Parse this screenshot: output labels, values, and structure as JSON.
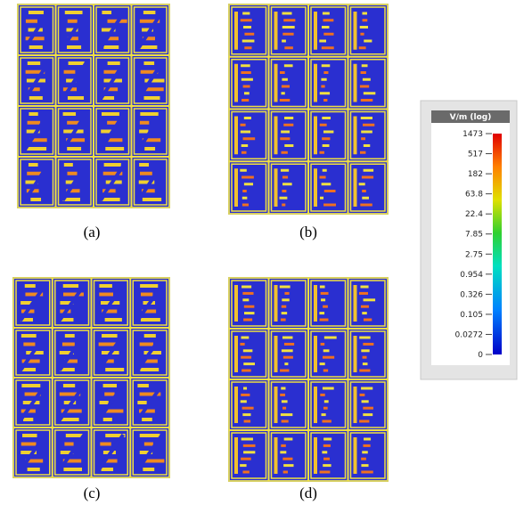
{
  "panels": [
    {
      "label": "(a)"
    },
    {
      "label": "(b)"
    },
    {
      "label": "(c)"
    },
    {
      "label": "(d)"
    }
  ],
  "colorbar": {
    "title": "V/m (log)",
    "ticks": [
      "1473",
      "517",
      "182",
      "63.8",
      "22.4",
      "7.85",
      "2.75",
      "0.954",
      "0.326",
      "0.105",
      "0.0272",
      "0"
    ]
  }
}
